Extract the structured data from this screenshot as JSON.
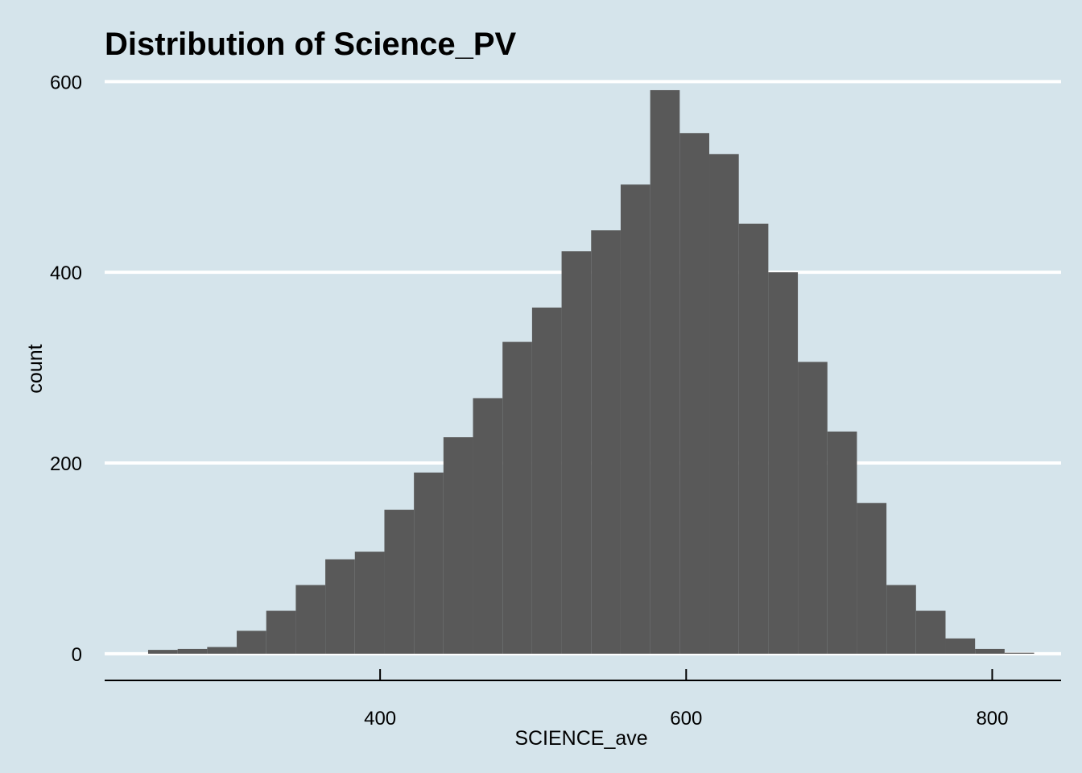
{
  "chart_data": {
    "type": "bar",
    "title": "Distribution of Science_PV",
    "xlabel": "SCIENCE_ave",
    "ylabel": "count",
    "xlim": [
      220,
      845
    ],
    "ylim": [
      -28,
      618
    ],
    "x_ticks": [
      400,
      600,
      800
    ],
    "y_ticks": [
      0,
      200,
      400,
      600
    ],
    "grid": "horizontal",
    "bar_color": "#595959",
    "background_color": "#d5e4eb",
    "gridline_color": "#ffffff",
    "bins": [
      {
        "start": 248.4,
        "end": 267.7,
        "count": 4
      },
      {
        "start": 267.7,
        "end": 287.0,
        "count": 5
      },
      {
        "start": 287.0,
        "end": 306.3,
        "count": 7
      },
      {
        "start": 306.3,
        "end": 325.6,
        "count": 24
      },
      {
        "start": 325.6,
        "end": 344.9,
        "count": 45
      },
      {
        "start": 344.9,
        "end": 364.2,
        "count": 72
      },
      {
        "start": 364.2,
        "end": 383.5,
        "count": 99
      },
      {
        "start": 383.5,
        "end": 402.8,
        "count": 107
      },
      {
        "start": 402.8,
        "end": 422.1,
        "count": 151
      },
      {
        "start": 422.1,
        "end": 441.4,
        "count": 190
      },
      {
        "start": 441.4,
        "end": 460.7,
        "count": 227
      },
      {
        "start": 460.7,
        "end": 480.0,
        "count": 268
      },
      {
        "start": 480.0,
        "end": 499.3,
        "count": 327
      },
      {
        "start": 499.3,
        "end": 518.6,
        "count": 363
      },
      {
        "start": 518.6,
        "end": 537.9,
        "count": 422
      },
      {
        "start": 537.9,
        "end": 557.2,
        "count": 444
      },
      {
        "start": 557.2,
        "end": 576.5,
        "count": 492
      },
      {
        "start": 576.5,
        "end": 595.8,
        "count": 591
      },
      {
        "start": 595.8,
        "end": 615.1,
        "count": 546
      },
      {
        "start": 615.1,
        "end": 634.4,
        "count": 524
      },
      {
        "start": 634.4,
        "end": 653.7,
        "count": 451
      },
      {
        "start": 653.7,
        "end": 673.0,
        "count": 400
      },
      {
        "start": 673.0,
        "end": 692.3,
        "count": 306
      },
      {
        "start": 692.3,
        "end": 711.6,
        "count": 233
      },
      {
        "start": 711.6,
        "end": 730.9,
        "count": 158
      },
      {
        "start": 730.9,
        "end": 750.2,
        "count": 72
      },
      {
        "start": 750.2,
        "end": 769.5,
        "count": 45
      },
      {
        "start": 769.5,
        "end": 788.8,
        "count": 16
      },
      {
        "start": 788.8,
        "end": 808.1,
        "count": 5
      },
      {
        "start": 808.1,
        "end": 827.4,
        "count": 1
      }
    ]
  }
}
